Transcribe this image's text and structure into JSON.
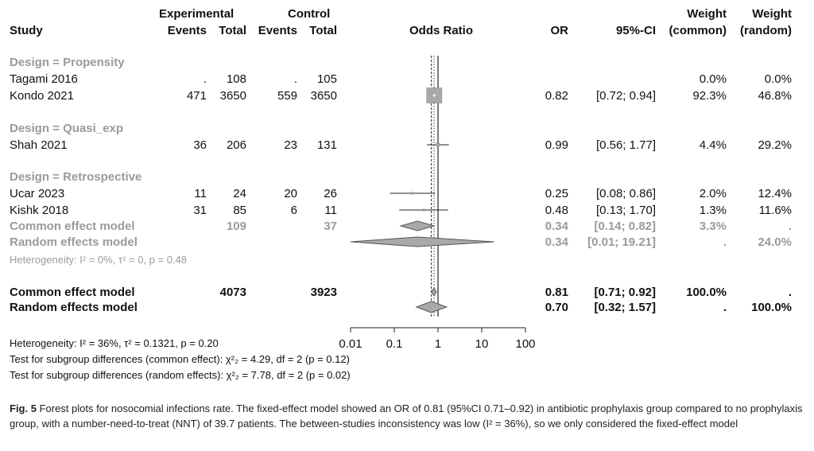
{
  "header": {
    "study": "Study",
    "experimental": "Experimental",
    "control": "Control",
    "events": "Events",
    "total": "Total",
    "odds_ratio": "Odds Ratio",
    "or": "OR",
    "ci": "95%-CI",
    "weight": "Weight",
    "weight_common": "(common)",
    "weight_random": "(random)"
  },
  "groups": [
    {
      "label": "Design = Propensity",
      "rows": [
        {
          "study": "Tagami 2016",
          "e_events": ".",
          "e_total": "108",
          "c_events": ".",
          "c_total": "105",
          "or": "",
          "ci": "",
          "w_common": "0.0%",
          "w_random": "0.0%"
        },
        {
          "study": "Kondo 2021",
          "e_events": "471",
          "e_total": "3650",
          "c_events": "559",
          "c_total": "3650",
          "or": "0.82",
          "ci": "[0.72; 0.94]",
          "w_common": "92.3%",
          "w_random": "46.8%"
        }
      ]
    },
    {
      "label": "Design = Quasi_exp",
      "rows": [
        {
          "study": "Shah 2021",
          "e_events": "36",
          "e_total": "206",
          "c_events": "23",
          "c_total": "131",
          "or": "0.99",
          "ci": "[0.56; 1.77]",
          "w_common": "4.4%",
          "w_random": "29.2%"
        }
      ]
    },
    {
      "label": "Design = Retrospective",
      "rows": [
        {
          "study": "Ucar 2023",
          "e_events": "11",
          "e_total": "24",
          "c_events": "20",
          "c_total": "26",
          "or": "0.25",
          "ci": "[0.08; 0.86]",
          "w_common": "2.0%",
          "w_random": "12.4%"
        },
        {
          "study": "Kishk 2018",
          "e_events": "31",
          "e_total": "85",
          "c_events": "6",
          "c_total": "11",
          "or": "0.48",
          "ci": "[0.13; 1.70]",
          "w_common": "1.3%",
          "w_random": "11.6%"
        }
      ],
      "common": {
        "label": "Common effect model",
        "e_total": "109",
        "c_total": "37",
        "or": "0.34",
        "ci": "[0.14; 0.82]",
        "w_common": "3.3%",
        "w_random": "."
      },
      "random": {
        "label": "Random effects model",
        "or": "0.34",
        "ci": "[0.01; 19.21]",
        "w_common": ".",
        "w_random": "24.0%"
      },
      "heterogeneity": "Heterogeneity: I² = 0%, τ² = 0, p = 0.48"
    }
  ],
  "overall": {
    "common": {
      "label": "Common effect model",
      "e_total": "4073",
      "c_total": "3923",
      "or": "0.81",
      "ci": "[0.71; 0.92]",
      "w_common": "100.0%",
      "w_random": "."
    },
    "random": {
      "label": "Random effects model",
      "or": "0.70",
      "ci": "[0.32; 1.57]",
      "w_common": ".",
      "w_random": "100.0%"
    }
  },
  "footer": {
    "heterogeneity": "Heterogeneity: I² = 36%, τ² = 0.1321, p = 0.20",
    "test_common": "Test for subgroup differences (common effect): χ²₂ = 4.29, df = 2 (p = 0.12)",
    "test_random": "Test for subgroup differences (random effects): χ²₂ = 7.78, df = 2 (p = 0.02)"
  },
  "caption": {
    "lead": "Fig. 5",
    "text": "Forest plots for nosocomial infections rate. The fixed-effect model showed an OR of 0.81 (95%CI 0.71–0.92) in antibiotic prophylaxis group compared to no prophylaxis group, with a number-need-to-treat (NNT) of 39.7 patients. The between-studies inconsistency was low (I² = 36%), so we only considered the fixed-effect model"
  },
  "chart_data": {
    "type": "forest",
    "scale": "log",
    "x_ticks": [
      0.01,
      0.1,
      1,
      10,
      100
    ],
    "x_tick_labels": [
      "0.01",
      "0.1",
      "1",
      "10",
      "100"
    ],
    "xlim": [
      0.01,
      100
    ],
    "null_value": 1,
    "reference_line_common": 0.81,
    "reference_line_random": 0.7,
    "colors": {
      "study_square": "#a9a9a9",
      "subgroup_diamond": "#a9a9a9",
      "overall_diamond": "#a9a9a9",
      "line": "#222222"
    },
    "studies": [
      {
        "name": "Kondo 2021",
        "or": 0.82,
        "lo": 0.72,
        "hi": 0.94,
        "weight": 92.3
      },
      {
        "name": "Shah 2021",
        "or": 0.99,
        "lo": 0.56,
        "hi": 1.77,
        "weight": 4.4
      },
      {
        "name": "Ucar 2023",
        "or": 0.25,
        "lo": 0.08,
        "hi": 0.86,
        "weight": 2.0
      },
      {
        "name": "Kishk 2018",
        "or": 0.48,
        "lo": 0.13,
        "hi": 1.7,
        "weight": 1.3
      }
    ],
    "diamonds": [
      {
        "name": "Retrospective common effect",
        "or": 0.34,
        "lo": 0.14,
        "hi": 0.82,
        "style": "subgroup"
      },
      {
        "name": "Retrospective random effects",
        "or": 0.34,
        "lo": 0.01,
        "hi": 19.21,
        "style": "subgroup"
      },
      {
        "name": "Overall common effect",
        "or": 0.81,
        "lo": 0.71,
        "hi": 0.92,
        "style": "overall"
      },
      {
        "name": "Overall random effects",
        "or": 0.7,
        "lo": 0.32,
        "hi": 1.57,
        "style": "overall"
      }
    ]
  }
}
